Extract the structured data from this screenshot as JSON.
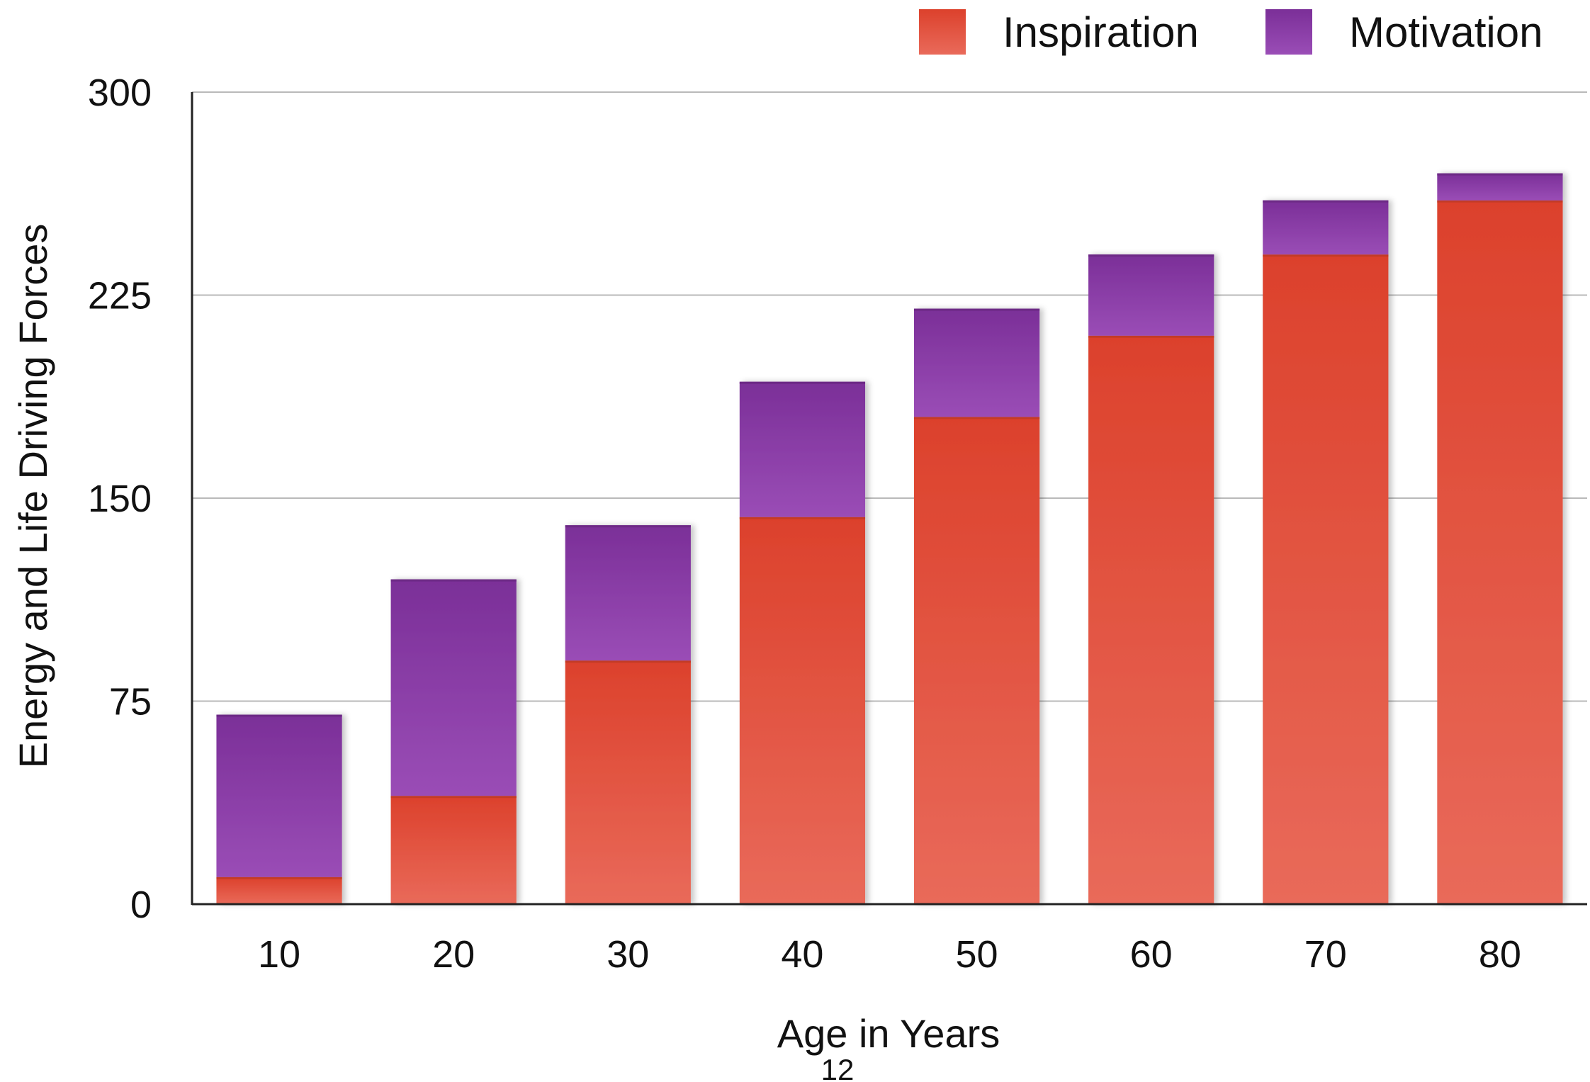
{
  "chart_data": {
    "type": "bar",
    "stacked": true,
    "categories": [
      "10",
      "20",
      "30",
      "40",
      "50",
      "60",
      "70",
      "80"
    ],
    "series": [
      {
        "name": "Inspiration",
        "values": [
          10,
          40,
          90,
          143,
          180,
          210,
          240,
          260
        ]
      },
      {
        "name": "Motivation",
        "values": [
          60,
          80,
          50,
          50,
          40,
          30,
          20,
          10
        ]
      }
    ],
    "title": "",
    "xlabel": "Age in Years",
    "ylabel": "Energy and Life Driving Forces",
    "ylim": [
      0,
      300
    ],
    "yticks": [
      "0",
      "75",
      "150",
      "225",
      "300"
    ],
    "grid": true,
    "legend_position": "top-right",
    "colors": {
      "Inspiration": "#e05a43",
      "Motivation": "#8a3fa3"
    }
  },
  "page_number": "12"
}
